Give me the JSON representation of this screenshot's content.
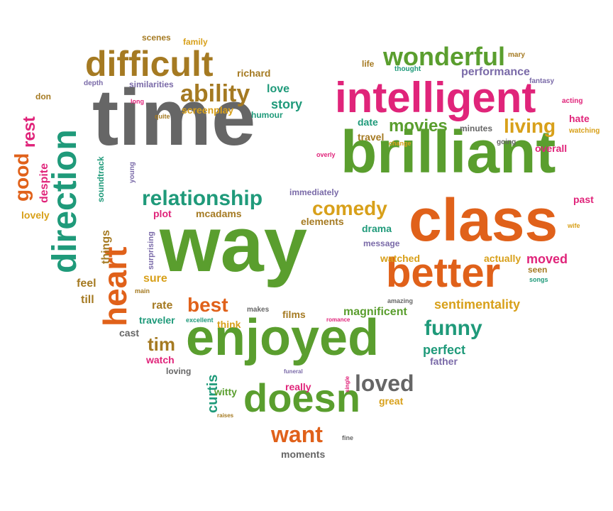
{
  "palette": {
    "gray": "#666666",
    "green": "#5a9e2e",
    "pink": "#e0247a",
    "orange": "#e0611a",
    "teal": "#1f9a7a",
    "brown": "#a57a22",
    "purple": "#7a6aa8",
    "gold": "#d8a01a"
  },
  "words": [
    {
      "text": "time",
      "color": "gray"
    },
    {
      "text": "way",
      "color": "green"
    },
    {
      "text": "brilliant",
      "color": "green"
    },
    {
      "text": "enjoyed",
      "color": "green"
    },
    {
      "text": "class",
      "color": "orange"
    },
    {
      "text": "intelligent",
      "color": "pink"
    },
    {
      "text": "difficult",
      "color": "brown"
    },
    {
      "text": "direction",
      "color": "teal"
    },
    {
      "text": "better",
      "color": "orange"
    },
    {
      "text": "doesn",
      "color": "green"
    },
    {
      "text": "heart",
      "color": "orange"
    },
    {
      "text": "wonderful",
      "color": "green"
    },
    {
      "text": "relationship",
      "color": "teal"
    },
    {
      "text": "ability",
      "color": "brown"
    },
    {
      "text": "comedy",
      "color": "gold"
    },
    {
      "text": "funny",
      "color": "teal"
    },
    {
      "text": "loved",
      "color": "gray"
    },
    {
      "text": "living",
      "color": "gold"
    },
    {
      "text": "movies",
      "color": "green"
    },
    {
      "text": "best",
      "color": "orange"
    },
    {
      "text": "tim",
      "color": "brown"
    },
    {
      "text": "want",
      "color": "orange"
    },
    {
      "text": "good",
      "color": "orange"
    },
    {
      "text": "rest",
      "color": "pink"
    },
    {
      "text": "sentimentality",
      "color": "gold"
    },
    {
      "text": "perfect",
      "color": "teal"
    },
    {
      "text": "magnificent",
      "color": "green"
    },
    {
      "text": "moved",
      "color": "pink"
    },
    {
      "text": "story",
      "color": "teal"
    },
    {
      "text": "love",
      "color": "teal"
    },
    {
      "text": "richard",
      "color": "brown"
    },
    {
      "text": "screenplay",
      "color": "gold"
    },
    {
      "text": "hate",
      "color": "pink"
    },
    {
      "text": "performance",
      "color": "purple"
    },
    {
      "text": "curtis",
      "color": "teal"
    },
    {
      "text": "witty",
      "color": "green"
    },
    {
      "text": "travel",
      "color": "brown"
    },
    {
      "text": "date",
      "color": "teal"
    },
    {
      "text": "minutes",
      "color": "gray"
    },
    {
      "text": "overall",
      "color": "pink"
    },
    {
      "text": "past",
      "color": "pink"
    },
    {
      "text": "despite",
      "color": "pink"
    },
    {
      "text": "lovely",
      "color": "gold"
    },
    {
      "text": "things",
      "color": "brown"
    },
    {
      "text": "feel",
      "color": "brown"
    },
    {
      "text": "till",
      "color": "brown"
    },
    {
      "text": "plot",
      "color": "pink"
    },
    {
      "text": "mcadams",
      "color": "brown"
    },
    {
      "text": "elements",
      "color": "brown"
    },
    {
      "text": "drama",
      "color": "teal"
    },
    {
      "text": "message",
      "color": "purple"
    },
    {
      "text": "watched",
      "color": "gold"
    },
    {
      "text": "actually",
      "color": "gold"
    },
    {
      "text": "seen",
      "color": "brown"
    },
    {
      "text": "sure",
      "color": "gold"
    },
    {
      "text": "rate",
      "color": "brown"
    },
    {
      "text": "traveler",
      "color": "teal"
    },
    {
      "text": "think",
      "color": "gold"
    },
    {
      "text": "films",
      "color": "brown"
    },
    {
      "text": "cast",
      "color": "gray"
    },
    {
      "text": "watch",
      "color": "pink"
    },
    {
      "text": "loving",
      "color": "gray"
    },
    {
      "text": "really",
      "color": "pink"
    },
    {
      "text": "father",
      "color": "purple"
    },
    {
      "text": "great",
      "color": "gold"
    },
    {
      "text": "moments",
      "color": "gray"
    },
    {
      "text": "soundtrack",
      "color": "teal"
    },
    {
      "text": "humour",
      "color": "teal"
    },
    {
      "text": "immediately",
      "color": "purple"
    },
    {
      "text": "similarities",
      "color": "purple"
    },
    {
      "text": "scenes",
      "color": "brown"
    },
    {
      "text": "family",
      "color": "gold"
    },
    {
      "text": "life",
      "color": "brown"
    },
    {
      "text": "thought",
      "color": "teal"
    },
    {
      "text": "mary",
      "color": "brown"
    },
    {
      "text": "fantasy",
      "color": "purple"
    },
    {
      "text": "acting",
      "color": "pink"
    },
    {
      "text": "watching",
      "color": "gold"
    },
    {
      "text": "going",
      "color": "gray"
    },
    {
      "text": "change",
      "color": "gold"
    },
    {
      "text": "overly",
      "color": "pink"
    },
    {
      "text": "don",
      "color": "brown"
    },
    {
      "text": "depth",
      "color": "purple"
    },
    {
      "text": "long",
      "color": "pink"
    },
    {
      "text": "quite",
      "color": "brown"
    },
    {
      "text": "young",
      "color": "purple"
    },
    {
      "text": "surprising",
      "color": "purple"
    },
    {
      "text": "main",
      "color": "brown"
    },
    {
      "text": "excellent",
      "color": "teal"
    },
    {
      "text": "makes",
      "color": "gray"
    },
    {
      "text": "amazing",
      "color": "gray"
    },
    {
      "text": "romance",
      "color": "pink"
    },
    {
      "text": "funeral",
      "color": "purple"
    },
    {
      "text": "single",
      "color": "pink"
    },
    {
      "text": "fine",
      "color": "gray"
    },
    {
      "text": "raises",
      "color": "brown"
    },
    {
      "text": "songs",
      "color": "teal"
    },
    {
      "text": "wife",
      "color": "gold"
    }
  ]
}
